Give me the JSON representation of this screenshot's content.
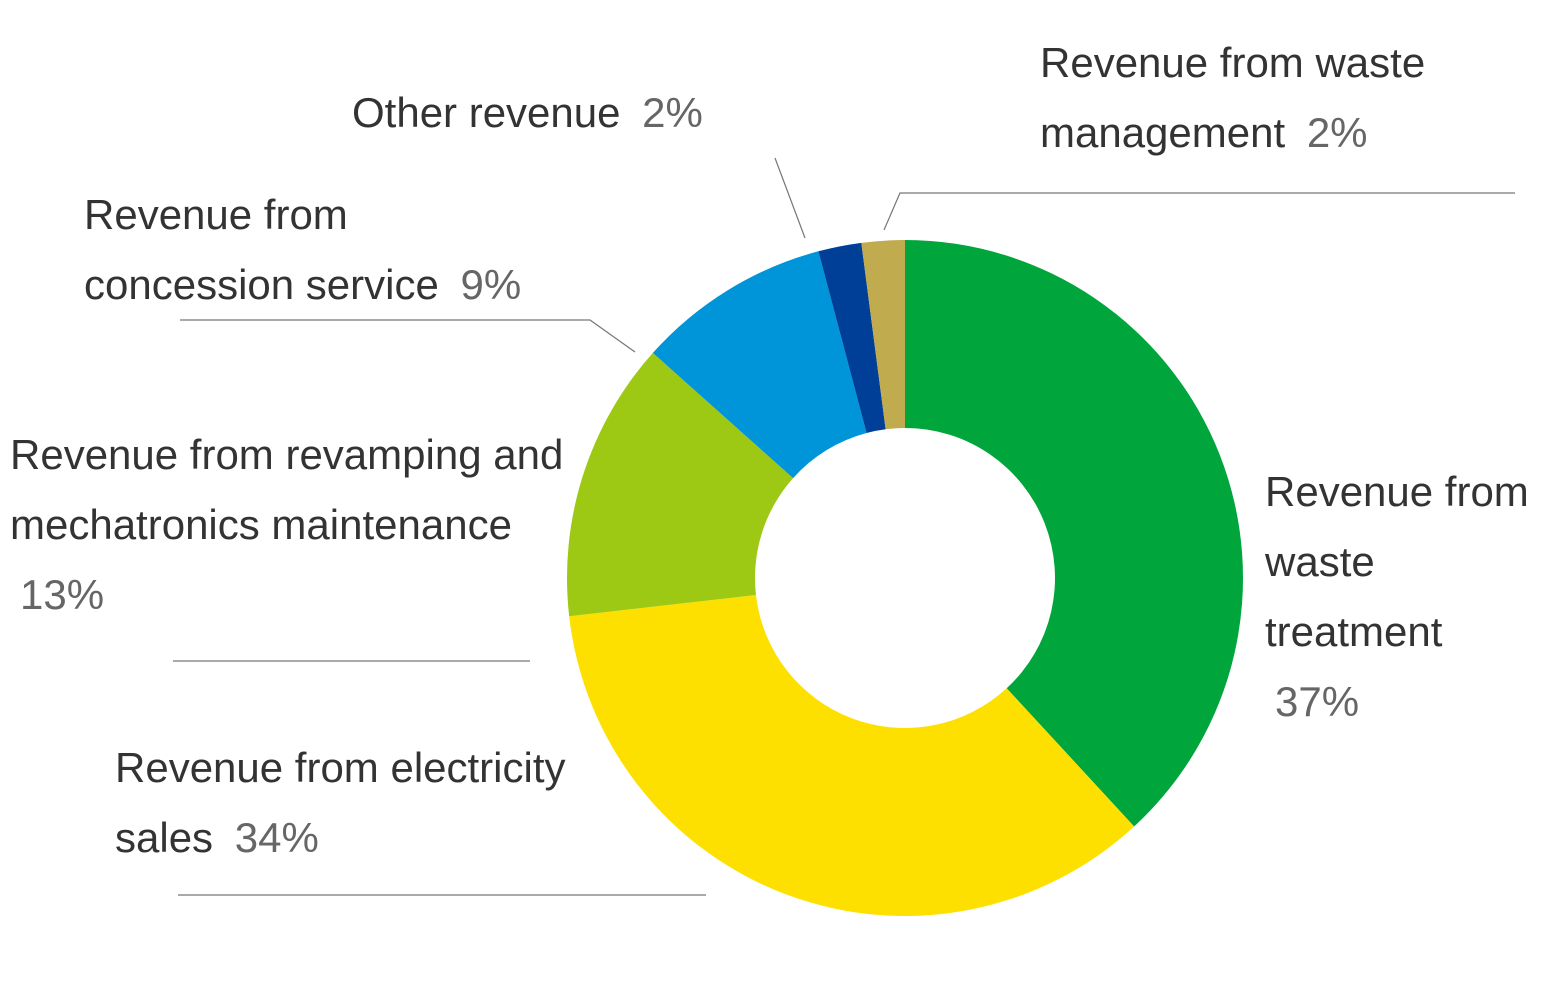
{
  "chart_data": {
    "type": "donut",
    "categories": [
      "Revenue from waste treatment",
      "Revenue from electricity sales",
      "Revenue from revamping and mechatronics maintenance",
      "Revenue from concession service",
      "Other revenue",
      "Revenue from waste management"
    ],
    "values": [
      37,
      34,
      13,
      9,
      2,
      2
    ],
    "value_labels": [
      "37%",
      "34%",
      "13%",
      "9%",
      "2%",
      "2%"
    ],
    "colors": [
      "#00a53c",
      "#fde000",
      "#9dc814",
      "#0094d9",
      "#003f98",
      "#c0ab4e"
    ]
  }
}
